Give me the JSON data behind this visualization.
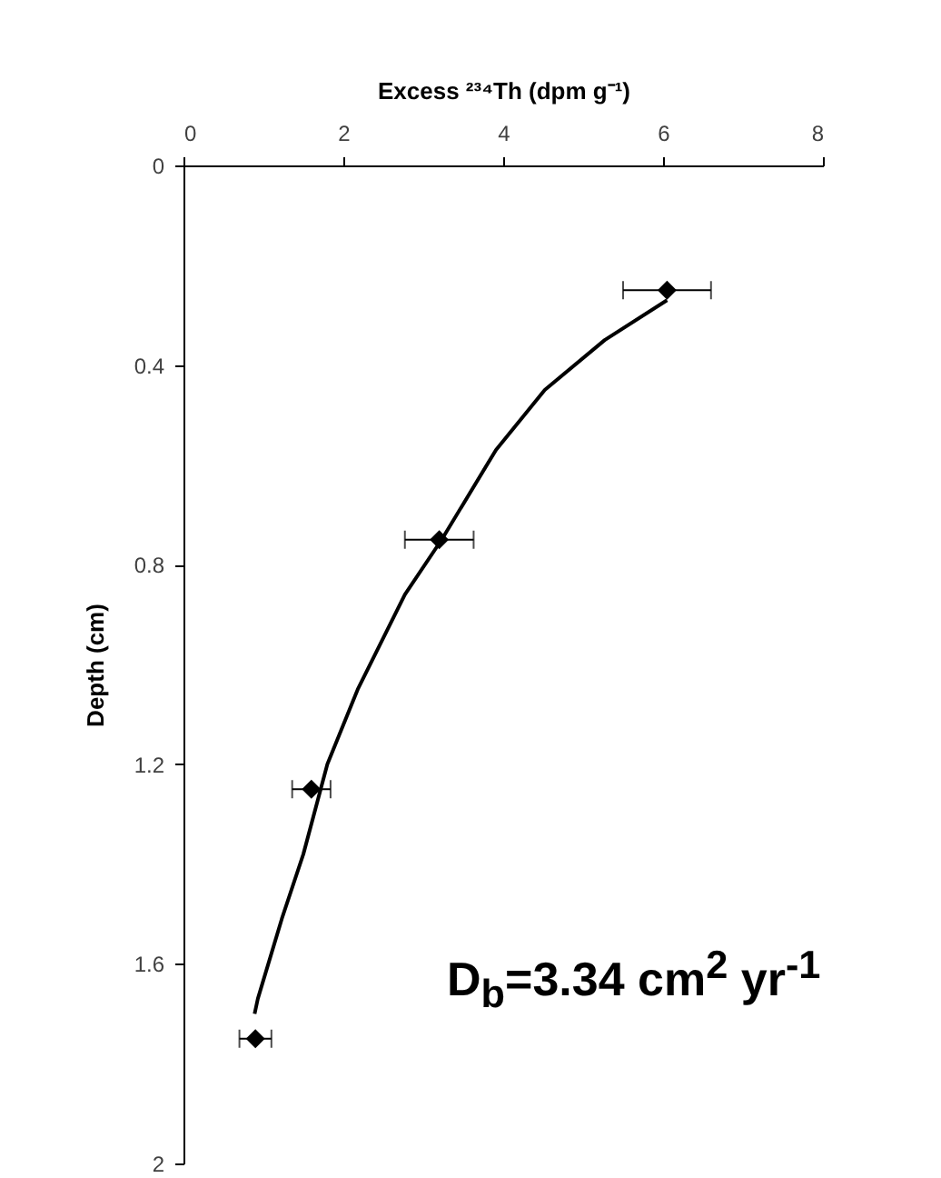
{
  "chart_data": {
    "type": "scatter",
    "xlabel": "Excess ²³⁴Th (dpm g⁻¹)",
    "ylabel": "Depth (cm)",
    "xlim": [
      0,
      8
    ],
    "xticks": [
      0,
      2,
      4,
      6,
      8
    ],
    "ylim": [
      2,
      0
    ],
    "yticks": [
      0,
      0.4,
      0.8,
      1.2,
      1.6,
      2
    ],
    "grid": false,
    "series": [
      {
        "marker": "diamond",
        "color": "#000000",
        "x": [
          6.05,
          3.2,
          1.6,
          0.9
        ],
        "values": [
          0.25,
          0.75,
          1.25,
          1.75
        ],
        "xerrors": [
          0.55,
          0.43,
          0.24,
          0.2
        ]
      },
      {
        "type": "line",
        "color": "#000000",
        "x": [
          6.05,
          5.27,
          4.52,
          3.91,
          3.23,
          2.77,
          2.18,
          1.8,
          1.5,
          1.23,
          0.93,
          0.89
        ],
        "values": [
          0.27,
          0.35,
          0.45,
          0.57,
          0.75,
          0.86,
          1.05,
          1.2,
          1.38,
          1.51,
          1.67,
          1.7
        ]
      }
    ],
    "annotations": [
      "D$_{b}$=3.34 cm$^{2}$ yr$^{-1}$"
    ]
  }
}
